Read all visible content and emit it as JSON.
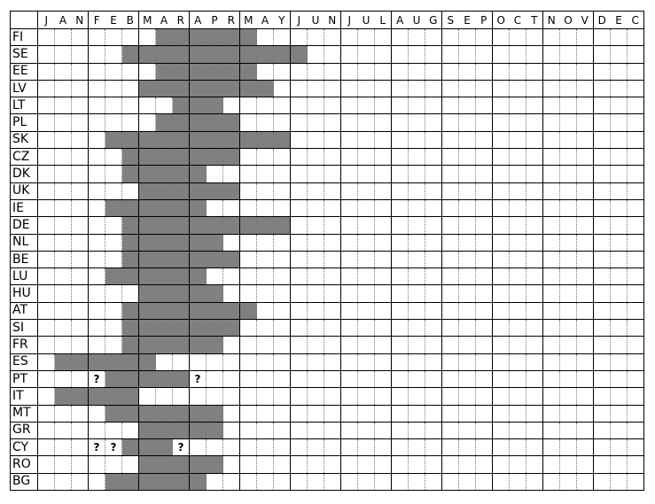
{
  "header": {
    "months": [
      {
        "letters": [
          "J",
          "A",
          "N"
        ]
      },
      {
        "letters": [
          "F",
          "E",
          "B"
        ]
      },
      {
        "letters": [
          "M",
          "A",
          "R"
        ]
      },
      {
        "letters": [
          "A",
          "P",
          "R"
        ]
      },
      {
        "letters": [
          "M",
          "A",
          "Y"
        ]
      },
      {
        "letters": [
          "J",
          "U",
          "N"
        ]
      },
      {
        "letters": [
          "J",
          "U",
          "L"
        ]
      },
      {
        "letters": [
          "A",
          "U",
          "G"
        ]
      },
      {
        "letters": [
          "S",
          "E",
          "P"
        ]
      },
      {
        "letters": [
          "O",
          "C",
          "T"
        ]
      },
      {
        "letters": [
          "N",
          "O",
          "V"
        ]
      },
      {
        "letters": [
          "D",
          "E",
          "C"
        ]
      }
    ]
  },
  "shade_color": "#808080",
  "question_mark": "?",
  "rows": [
    {
      "label": "FI",
      "shaded": [
        [
          7,
          12
        ]
      ],
      "questions": []
    },
    {
      "label": "SE",
      "shaded": [
        [
          5,
          15
        ]
      ],
      "questions": []
    },
    {
      "label": "EE",
      "shaded": [
        [
          7,
          12
        ]
      ],
      "questions": []
    },
    {
      "label": "LV",
      "shaded": [
        [
          6,
          13
        ]
      ],
      "questions": []
    },
    {
      "label": "LT",
      "shaded": [
        [
          8,
          10
        ]
      ],
      "questions": []
    },
    {
      "label": "PL",
      "shaded": [
        [
          7,
          11
        ]
      ],
      "questions": []
    },
    {
      "label": "SK",
      "shaded": [
        [
          4,
          14
        ]
      ],
      "questions": []
    },
    {
      "label": "CZ",
      "shaded": [
        [
          5,
          11
        ]
      ],
      "questions": []
    },
    {
      "label": "DK",
      "shaded": [
        [
          5,
          9
        ]
      ],
      "questions": []
    },
    {
      "label": "UK",
      "shaded": [
        [
          6,
          11
        ]
      ],
      "questions": []
    },
    {
      "label": "IE",
      "shaded": [
        [
          4,
          9
        ]
      ],
      "questions": []
    },
    {
      "label": "DE",
      "shaded": [
        [
          5,
          14
        ]
      ],
      "questions": []
    },
    {
      "label": "NL",
      "shaded": [
        [
          5,
          10
        ]
      ],
      "questions": []
    },
    {
      "label": "BE",
      "shaded": [
        [
          5,
          11
        ]
      ],
      "questions": []
    },
    {
      "label": "LU",
      "shaded": [
        [
          4,
          9
        ]
      ],
      "questions": []
    },
    {
      "label": "HU",
      "shaded": [
        [
          6,
          10
        ]
      ],
      "questions": []
    },
    {
      "label": "AT",
      "shaded": [
        [
          5,
          12
        ]
      ],
      "questions": []
    },
    {
      "label": "SI",
      "shaded": [
        [
          5,
          11
        ]
      ],
      "questions": []
    },
    {
      "label": "FR",
      "shaded": [
        [
          5,
          10
        ]
      ],
      "questions": []
    },
    {
      "label": "ES",
      "shaded": [
        [
          1,
          6
        ]
      ],
      "questions": []
    },
    {
      "label": "PT",
      "shaded": [
        [
          4,
          8
        ]
      ],
      "questions": [
        3,
        9
      ]
    },
    {
      "label": "IT",
      "shaded": [
        [
          1,
          5
        ]
      ],
      "questions": []
    },
    {
      "label": "MT",
      "shaded": [
        [
          4,
          10
        ]
      ],
      "questions": []
    },
    {
      "label": "GR",
      "shaded": [
        [
          6,
          10
        ]
      ],
      "questions": []
    },
    {
      "label": "CY",
      "shaded": [
        [
          5,
          7
        ]
      ],
      "questions": [
        3,
        4,
        8
      ]
    },
    {
      "label": "RO",
      "shaded": [
        [
          6,
          10
        ]
      ],
      "questions": []
    },
    {
      "label": "BG",
      "shaded": [
        [
          4,
          9
        ]
      ],
      "questions": []
    }
  ]
}
